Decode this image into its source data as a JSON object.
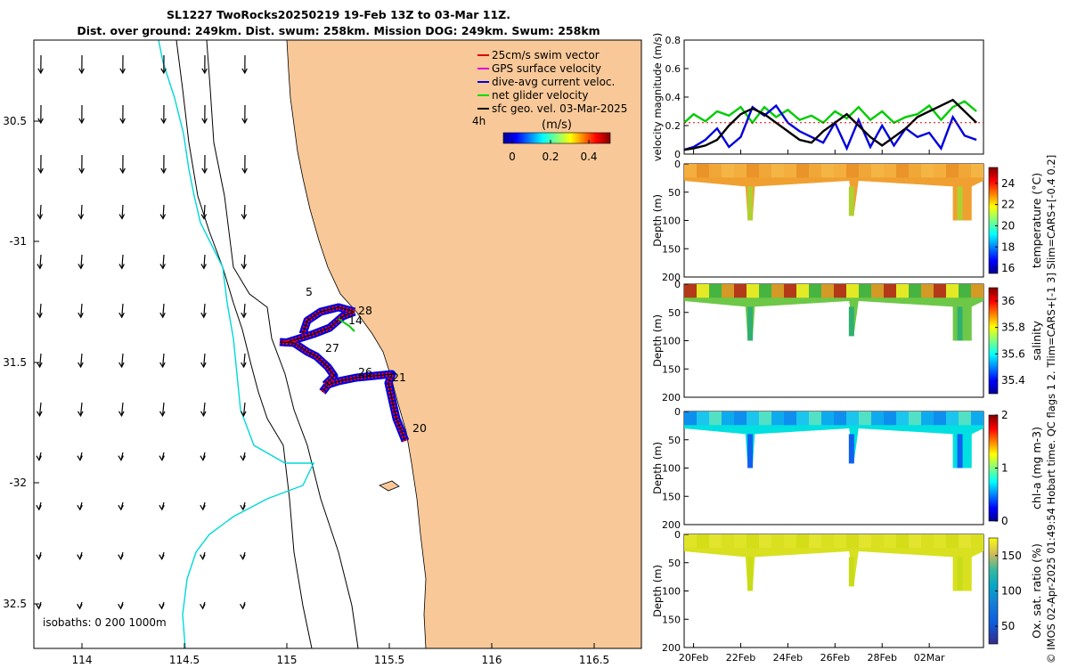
{
  "figure": {
    "title_line1": "SL1227 TwoRocks20250219 19-Feb 13Z to 03-Mar 11Z.",
    "title_line2": "Dist. over ground: 249km. Dist. swum: 258km. Mission DOG: 249km. Swum: 258km",
    "side_caption": "© IMOS 02-Apr-2025 01:49:54 Hobart time. QC flags 1  2. Tlim=CARS+[-1 3] Slim=CARS+[-0.4 0.2]"
  },
  "map": {
    "lon_ticks": [
      "114",
      "114.5",
      "115",
      "115.5",
      "116",
      "116.5"
    ],
    "lat_ticks": [
      "30.5",
      "-31",
      "31.5",
      "-32",
      "32.5"
    ],
    "isobaths_label": "isobaths: 0   200  1000m",
    "time_step_label": "4h",
    "day_labels": [
      "5",
      "28",
      "14",
      "27",
      "26",
      "21",
      "20"
    ],
    "legend": [
      {
        "label": "25cm/s swim vector",
        "color": "#dd0000"
      },
      {
        "label": "GPS surface velocity",
        "color": "#dd00dd"
      },
      {
        "label": "dive-avg current veloc.",
        "color": "#0000dd"
      },
      {
        "label": "net glider velocity",
        "color": "#00dd00"
      },
      {
        "label": "sfc geo. vel. 03-Mar-2025",
        "color": "#000000"
      }
    ],
    "colorbar": {
      "unit": "(m/s)",
      "ticks": [
        "0",
        "0.2",
        "0.4"
      ]
    },
    "colors": {
      "land": "#f8c898",
      "coast_200m": "#00d8d8",
      "isobath": "#000000",
      "track_blue": "#0000dd",
      "track_red": "#ff0000"
    }
  },
  "chart_data": [
    {
      "type": "line",
      "title": "",
      "ylabel": "velocity magnitude (m/s)",
      "ylim": [
        0,
        0.8
      ],
      "yticks": [
        "0",
        "0.2",
        "0.4",
        "0.6",
        "0.8"
      ],
      "x": [
        19.6,
        20.0,
        20.5,
        21.0,
        21.5,
        22.0,
        22.5,
        23.0,
        23.5,
        24.0,
        24.5,
        25.0,
        25.5,
        26.0,
        26.5,
        27.0,
        27.5,
        28.0,
        28.5,
        29.0,
        29.5,
        30.0,
        30.5,
        31.0,
        31.5,
        32.0
      ],
      "series": [
        {
          "name": "net glider velocity",
          "color": "#00cc00",
          "values": [
            0.22,
            0.28,
            0.23,
            0.3,
            0.27,
            0.33,
            0.22,
            0.33,
            0.26,
            0.31,
            0.24,
            0.27,
            0.22,
            0.3,
            0.25,
            0.33,
            0.24,
            0.3,
            0.22,
            0.26,
            0.28,
            0.34,
            0.24,
            0.33,
            0.37,
            0.3
          ]
        },
        {
          "name": "dive-avg current veloc.",
          "color": "#0000dd",
          "values": [
            0.03,
            0.05,
            0.1,
            0.18,
            0.05,
            0.12,
            0.33,
            0.27,
            0.34,
            0.22,
            0.16,
            0.12,
            0.08,
            0.22,
            0.04,
            0.24,
            0.05,
            0.2,
            0.06,
            0.18,
            0.12,
            0.15,
            0.04,
            0.26,
            0.13,
            0.1
          ]
        },
        {
          "name": "sfc geo. vel.",
          "color": "#000000",
          "values": [
            0.03,
            0.04,
            0.06,
            0.1,
            0.2,
            0.28,
            0.32,
            0.28,
            0.22,
            0.16,
            0.1,
            0.08,
            0.16,
            0.22,
            0.28,
            0.2,
            0.12,
            0.06,
            0.12,
            0.18,
            0.26,
            0.3,
            0.34,
            0.38,
            0.3,
            0.22
          ]
        }
      ]
    },
    {
      "type": "heatmap",
      "ylabel": "Depth (m)",
      "clabel": "temperature (°C)",
      "ylim": [
        200,
        0
      ],
      "yticks": [
        "0",
        "50",
        "100",
        "150",
        "200"
      ],
      "cticks": [
        "16",
        "18",
        "20",
        "22",
        "24"
      ],
      "clim": [
        15.5,
        25.5
      ]
    },
    {
      "type": "heatmap",
      "ylabel": "Depth (m)",
      "clabel": "salinity",
      "ylim": [
        200,
        0
      ],
      "yticks": [
        "0",
        "50",
        "100",
        "150",
        "200"
      ],
      "cticks": [
        "35.4",
        "35.6",
        "35.8",
        "36"
      ],
      "clim": [
        35.3,
        36.1
      ]
    },
    {
      "type": "heatmap",
      "ylabel": "Depth (m)",
      "clabel": "chl-a (mg m-3)",
      "ylim": [
        200,
        0
      ],
      "yticks": [
        "0",
        "50",
        "100",
        "150",
        "200"
      ],
      "cticks": [
        "0",
        "1",
        "2"
      ],
      "clim": [
        0,
        2
      ]
    },
    {
      "type": "heatmap",
      "ylabel": "Depth (m)",
      "clabel": "Ox. sat. ratio (%)",
      "ylim": [
        200,
        0
      ],
      "yticks": [
        "0",
        "50",
        "100",
        "150",
        "200"
      ],
      "cticks": [
        "50",
        "100",
        "150"
      ],
      "clim": [
        25,
        175
      ]
    }
  ],
  "time_axis": {
    "ticks": [
      "20Feb",
      "22Feb",
      "24Feb",
      "26Feb",
      "28Feb",
      "02Mar"
    ]
  }
}
